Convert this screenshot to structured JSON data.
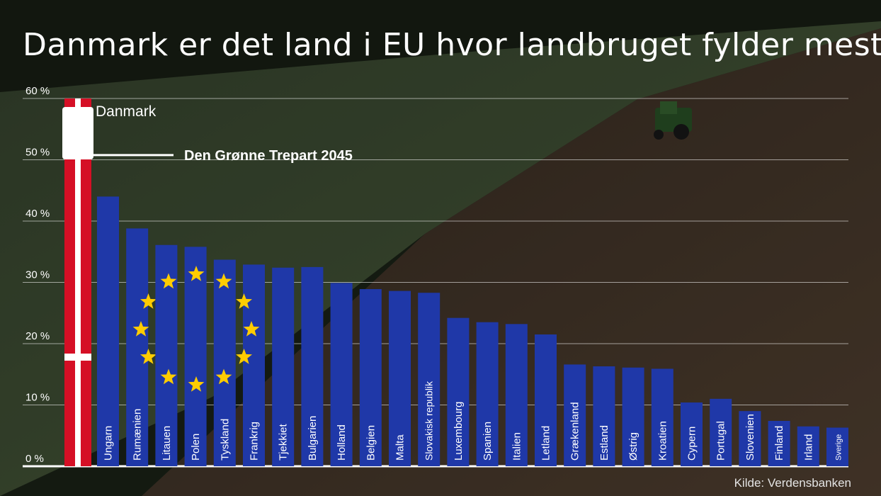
{
  "title": "Danmark er det land i EU hvor landbruget fylder mest",
  "source": "Kilde: Verdensbanken",
  "colors": {
    "eu_blue": "#1f38a8",
    "eu_star": "#ffcc00",
    "denmark_red": "#d50f25",
    "gridline": "#ffffff",
    "text": "#ffffff"
  },
  "chart_data": {
    "type": "bar",
    "title": "Danmark er det land i EU hvor landbruget fylder mest",
    "categories": [
      "Danmark",
      "Ungarn",
      "Rumænien",
      "Litauen",
      "Polen",
      "Tyskland",
      "Frankrig",
      "Tjekkiet",
      "Bulgarien",
      "Holland",
      "Belgien",
      "Malta",
      "Slovakisk republik",
      "Luxembourg",
      "Spanien",
      "Italien",
      "Letland",
      "Grækenland",
      "Estland",
      "Østrig",
      "Kroatien",
      "Cypern",
      "Portugal",
      "Slovenien",
      "Finland",
      "Irland",
      "Sverige"
    ],
    "values": [
      60.0,
      44.0,
      38.8,
      36.1,
      35.8,
      33.7,
      32.9,
      32.4,
      32.5,
      29.9,
      28.9,
      28.6,
      28.3,
      24.2,
      23.5,
      23.2,
      21.5,
      16.6,
      16.3,
      16.1,
      15.9,
      10.4,
      11.0,
      9.0,
      7.4,
      6.5,
      6.3
    ],
    "ylim": [
      0,
      60
    ],
    "yticks": [
      "0 %",
      "10 %",
      "20 %",
      "30 %",
      "40 %",
      "50 %",
      "60 %"
    ],
    "ytick_values": [
      0,
      10,
      20,
      30,
      40,
      50,
      60
    ],
    "xlabel": "",
    "ylabel": "",
    "grid": true,
    "annotations": [
      {
        "text": "Danmark",
        "category": "Danmark",
        "y": 57.9
      },
      {
        "text": "Den Grønne Trepart 2045",
        "y": 51.0
      }
    ]
  }
}
